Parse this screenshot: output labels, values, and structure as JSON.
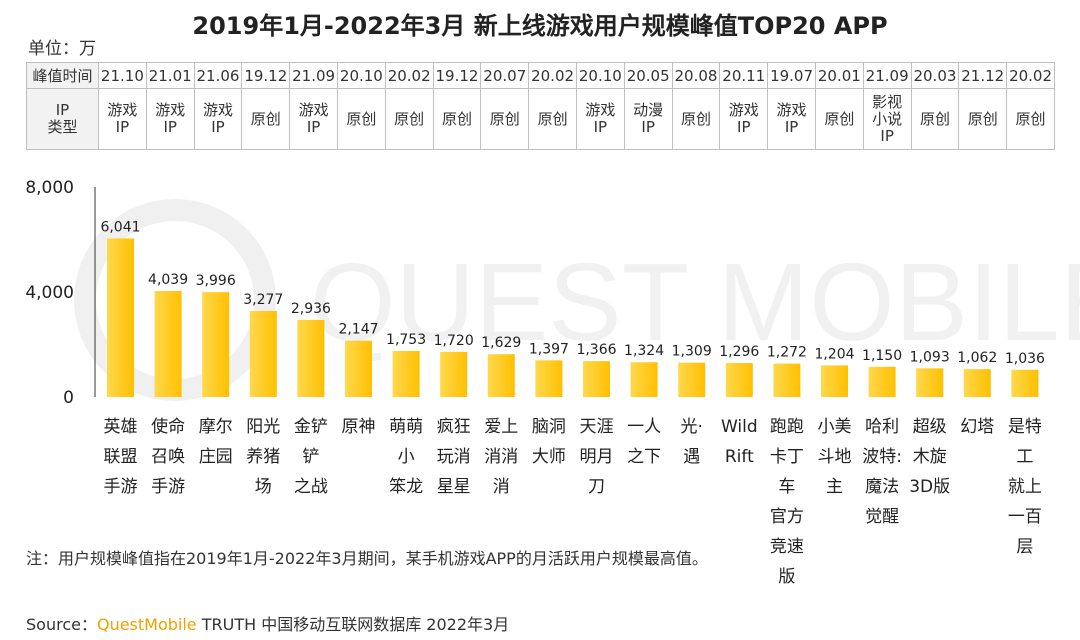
{
  "title": "2019年1月-2022年3月 新上线游戏用户规模峰值TOP20 APP",
  "unit_label": "单位：万",
  "watermark": "QUEST MOBILE",
  "table": {
    "row1_header": "峰值时间",
    "row2_header": "IP\n类型",
    "peak_times": [
      "21.10",
      "21.01",
      "21.06",
      "19.12",
      "21.09",
      "20.10",
      "20.02",
      "19.12",
      "20.07",
      "20.02",
      "20.10",
      "20.05",
      "20.08",
      "20.11",
      "19.07",
      "20.01",
      "21.09",
      "20.03",
      "21.12",
      "20.02"
    ],
    "ip_types": [
      "游戏\nIP",
      "游戏\nIP",
      "游戏\nIP",
      "原创",
      "游戏\nIP",
      "原创",
      "原创",
      "原创",
      "原创",
      "原创",
      "游戏\nIP",
      "动漫\nIP",
      "原创",
      "游戏\nIP",
      "游戏\nIP",
      "原创",
      "影视\n小说\nIP",
      "原创",
      "原创",
      "原创"
    ]
  },
  "chart_data": {
    "type": "bar",
    "categories": [
      "英雄联盟手游",
      "使命召唤手游",
      "摩尔庄园",
      "阳光养猪场",
      "金铲铲之战",
      "原神",
      "萌萌小笨龙",
      "疯狂玩消星星",
      "爱上消消消",
      "脑洞大师",
      "天涯明月刀",
      "一人之下",
      "光·遇",
      "Wild Rift",
      "跑跑卡丁车官方竞速版",
      "小美斗地主",
      "哈利波特：魔法觉醒",
      "超级木旋3D版",
      "幻塔",
      "是特工就上一百层"
    ],
    "category_display": [
      "英雄\n联盟\n手游",
      "使命\n召唤\n手游",
      "摩尔\n庄园",
      "阳光\n养猪\n场",
      "金铲\n铲\n之战",
      "原神",
      "萌萌\n小\n笨龙",
      "疯狂\n玩消\n星星",
      "爱上\n消消\n消",
      "脑洞\n大师",
      "天涯\n明月\n刀",
      "一人\n之下",
      "光·\n遇",
      "Wild\nRift",
      "跑跑\n卡丁车\n官方\n竞速版",
      "小美\n斗地\n主",
      "哈利\n波特:\n魔法\n觉醒",
      "超级\n木旋\n3D版",
      "幻塔",
      "是特工\n就上\n一百层"
    ],
    "values": [
      6041,
      4039,
      3996,
      3277,
      2936,
      2147,
      1753,
      1720,
      1629,
      1397,
      1366,
      1324,
      1309,
      1296,
      1272,
      1204,
      1150,
      1093,
      1062,
      1036
    ],
    "value_labels": [
      "6,041",
      "4,039",
      "3,996",
      "3,277",
      "2,936",
      "2,147",
      "1,753",
      "1,720",
      "1,629",
      "1,397",
      "1,366",
      "1,324",
      "1,309",
      "1,296",
      "1,272",
      "1,204",
      "1,150",
      "1,093",
      "1,062",
      "1,036"
    ],
    "yticks": [
      "8,000",
      "4,000",
      "0"
    ],
    "ylim": [
      0,
      8000
    ],
    "bar_color": "#ffc000",
    "bar_color_light": "#ffd84d"
  },
  "note": "注：用户规模峰值指在2019年1月-2022年3月期间，某手机游戏APP的月活跃用户规模最高值。",
  "source": {
    "prefix": "Source：",
    "brand": "QuestMobile",
    "suffix": " TRUTH 中国移动互联网数据库 2022年3月"
  }
}
